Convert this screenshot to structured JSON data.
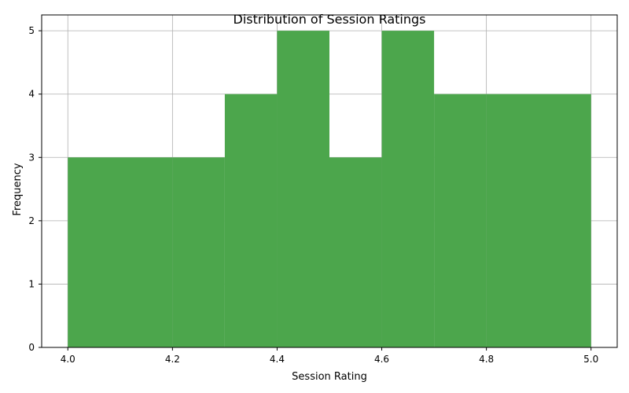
{
  "chart_data": {
    "type": "bar",
    "title": "Distribution of Session Ratings",
    "xlabel": "Session Rating",
    "ylabel": "Frequency",
    "bar_color": "#4ca64c",
    "grid": true,
    "xlim": [
      3.95,
      5.05
    ],
    "ylim": [
      0,
      5.25
    ],
    "xticks": [
      "4.0",
      "4.2",
      "4.4",
      "4.6",
      "4.8",
      "5.0"
    ],
    "yticks": [
      "0",
      "1",
      "2",
      "3",
      "4",
      "5"
    ],
    "bins": [
      {
        "x0": 4.0,
        "x1": 4.2,
        "value": 3
      },
      {
        "x0": 4.2,
        "x1": 4.3,
        "value": 3
      },
      {
        "x0": 4.3,
        "x1": 4.4,
        "value": 4
      },
      {
        "x0": 4.4,
        "x1": 4.5,
        "value": 5
      },
      {
        "x0": 4.5,
        "x1": 4.6,
        "value": 3
      },
      {
        "x0": 4.6,
        "x1": 4.7,
        "value": 5
      },
      {
        "x0": 4.7,
        "x1": 4.8,
        "value": 4
      },
      {
        "x0": 4.8,
        "x1": 5.0,
        "value": 4
      }
    ]
  }
}
